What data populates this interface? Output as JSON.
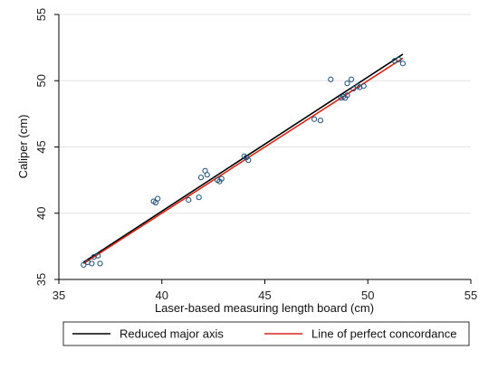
{
  "chart_data": {
    "type": "scatter",
    "xlabel": "Laser-based measuring length board (cm)",
    "ylabel": "Caliper (cm)",
    "xlim": [
      35,
      55
    ],
    "ylim": [
      35,
      55
    ],
    "xticks": [
      35,
      40,
      45,
      50,
      55
    ],
    "yticks": [
      35,
      40,
      45,
      50,
      55
    ],
    "grid": true,
    "legend_position": "bottom",
    "points": [
      {
        "x": 36.2,
        "y": 36.1
      },
      {
        "x": 36.4,
        "y": 36.3
      },
      {
        "x": 36.6,
        "y": 36.2
      },
      {
        "x": 36.7,
        "y": 36.7
      },
      {
        "x": 36.9,
        "y": 36.8
      },
      {
        "x": 37.0,
        "y": 36.2
      },
      {
        "x": 39.6,
        "y": 40.9
      },
      {
        "x": 39.7,
        "y": 40.8
      },
      {
        "x": 39.8,
        "y": 41.1
      },
      {
        "x": 41.3,
        "y": 41.0
      },
      {
        "x": 41.8,
        "y": 41.2
      },
      {
        "x": 41.9,
        "y": 42.7
      },
      {
        "x": 42.1,
        "y": 43.2
      },
      {
        "x": 42.2,
        "y": 42.9
      },
      {
        "x": 42.7,
        "y": 42.5
      },
      {
        "x": 42.8,
        "y": 42.4
      },
      {
        "x": 42.9,
        "y": 42.6
      },
      {
        "x": 44.0,
        "y": 44.3
      },
      {
        "x": 44.1,
        "y": 44.2
      },
      {
        "x": 44.2,
        "y": 44.0
      },
      {
        "x": 47.4,
        "y": 47.1
      },
      {
        "x": 47.7,
        "y": 47.0
      },
      {
        "x": 48.2,
        "y": 50.1
      },
      {
        "x": 48.7,
        "y": 48.7
      },
      {
        "x": 48.8,
        "y": 48.8
      },
      {
        "x": 48.9,
        "y": 48.7
      },
      {
        "x": 49.0,
        "y": 49.8
      },
      {
        "x": 49.0,
        "y": 48.9
      },
      {
        "x": 49.2,
        "y": 50.1
      },
      {
        "x": 49.3,
        "y": 49.4
      },
      {
        "x": 49.5,
        "y": 49.6
      },
      {
        "x": 49.6,
        "y": 49.5
      },
      {
        "x": 49.8,
        "y": 49.6
      },
      {
        "x": 51.3,
        "y": 51.5
      },
      {
        "x": 51.5,
        "y": 51.6
      },
      {
        "x": 51.7,
        "y": 51.3
      }
    ],
    "series": [
      {
        "name": "Reduced major axis",
        "color": "#000000",
        "line": [
          [
            36.2,
            36.3
          ],
          [
            51.7,
            52.0
          ]
        ]
      },
      {
        "name": "Line of perfect concordance",
        "color": "#d62718",
        "line": [
          [
            36.2,
            36.2
          ],
          [
            51.7,
            51.7
          ]
        ]
      }
    ],
    "marker_color": "#1f4e79"
  }
}
